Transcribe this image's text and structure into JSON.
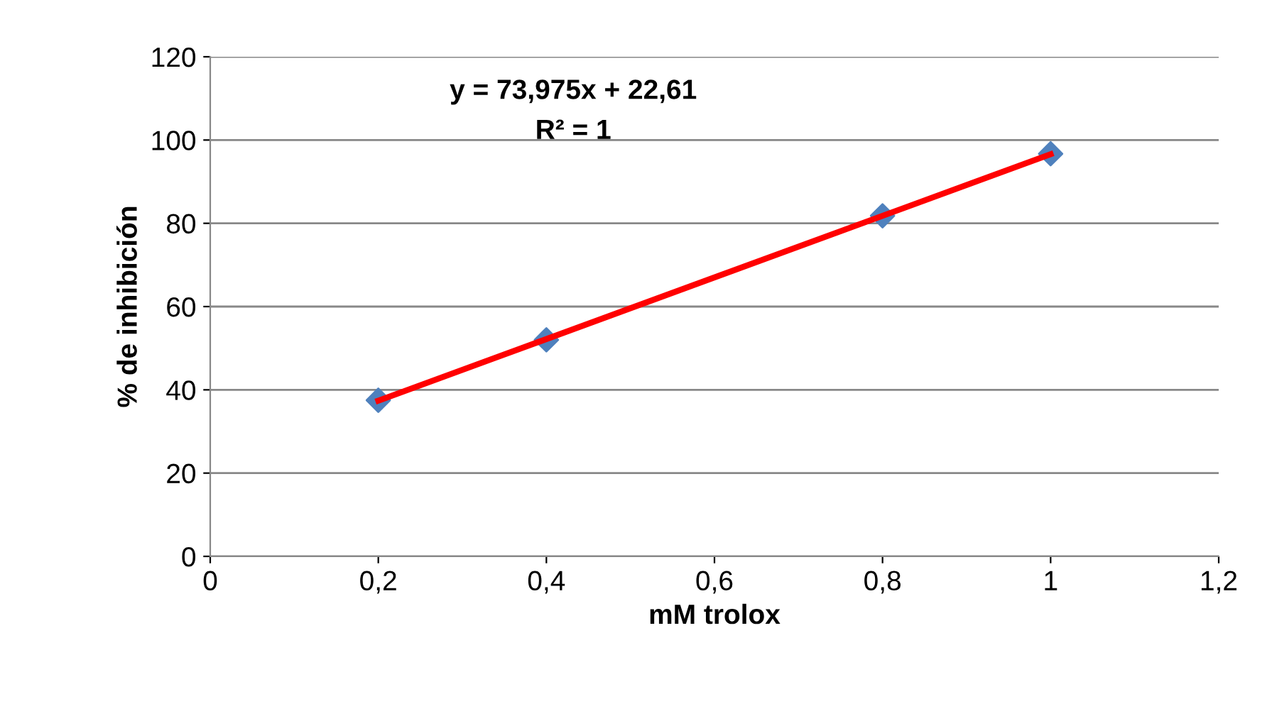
{
  "chart_data": {
    "type": "scatter",
    "xlabel": "mM trolox",
    "ylabel": "% de inhibición",
    "series": [
      {
        "color": "#4f81bd",
        "marker": "diamond",
        "x": [
          0.2,
          0.4,
          0.8,
          1
        ],
        "values": [
          37.5,
          52,
          81.8,
          96.7
        ]
      },
      {
        "type": "line",
        "color": "#ff0000",
        "marker": "none",
        "line_style": "solid",
        "x": [
          0.2,
          1
        ],
        "values": [
          37.4,
          96.6
        ]
      }
    ],
    "annotations": [
      "y = 73,975x + 22,61",
      "R² = 1"
    ],
    "xlim": [
      0,
      1.2
    ],
    "ylim": [
      0,
      120
    ],
    "xticks": [
      0,
      {
        "value": 0.2,
        "label": "0,2"
      },
      {
        "value": 0.4,
        "label": "0,4"
      },
      {
        "value": 0.6,
        "label": "0,6"
      },
      {
        "value": 0.8,
        "label": "0,8"
      },
      1,
      {
        "value": 1.2,
        "label": "1,2"
      }
    ],
    "yticks": [
      0,
      20,
      40,
      60,
      80,
      100,
      120
    ],
    "grid": "y",
    "legend": false
  }
}
